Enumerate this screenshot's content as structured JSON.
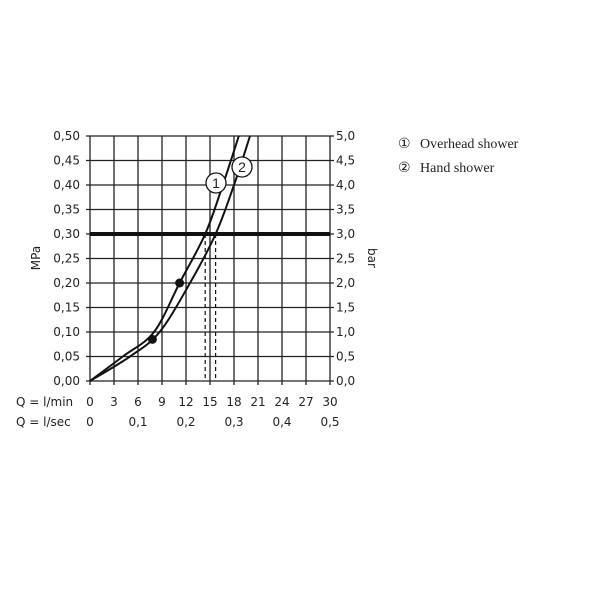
{
  "chart_data": {
    "type": "line",
    "xlabel_rows": [
      {
        "label": "Q = l/min",
        "ticks": [
          "0",
          "3",
          "6",
          "9",
          "12",
          "15",
          "18",
          "21",
          "24",
          "27",
          "30"
        ]
      },
      {
        "label": "Q = l/sec",
        "ticks": [
          "0",
          "0,1",
          "0,2",
          "0,3",
          "0,4",
          "0,5"
        ]
      }
    ],
    "xlim": [
      0,
      30
    ],
    "ylabel_left": "MPa",
    "ylabel_right": "bar",
    "ylim": [
      0,
      0.5
    ],
    "yticks_left": [
      "0,00",
      "0,05",
      "0,10",
      "0,15",
      "0,20",
      "0,25",
      "0,30",
      "0,35",
      "0,40",
      "0,45",
      "0,50"
    ],
    "yticks_right": [
      "0,0",
      "0,5",
      "1,0",
      "1,5",
      "2,0",
      "2,5",
      "3,0",
      "3,5",
      "4,0",
      "4,5",
      "5,0"
    ],
    "grid": true,
    "reference_line_mpa": 0.3,
    "legend_position": "right",
    "series": [
      {
        "name": "Overhead shower",
        "marker_label": "1",
        "x": [
          0,
          4.1,
          8.0,
          11.2,
          14.4,
          16.6,
          18.6
        ],
        "y": [
          0,
          0.05,
          0.1,
          0.2,
          0.3,
          0.4,
          0.5
        ],
        "dot": [
          11.2,
          0.2
        ],
        "flow_at_ref": 14.4
      },
      {
        "name": "Hand shower",
        "marker_label": "2",
        "x": [
          0,
          5.0,
          8.7,
          12.5,
          15.7,
          18.0,
          20.0
        ],
        "y": [
          0,
          0.05,
          0.1,
          0.2,
          0.3,
          0.4,
          0.5
        ],
        "dot": [
          7.8,
          0.085
        ],
        "flow_at_ref": 15.7
      }
    ]
  },
  "legend": [
    {
      "symbol": "①",
      "label": "Overhead shower"
    },
    {
      "symbol": "②",
      "label": "Hand shower"
    }
  ]
}
